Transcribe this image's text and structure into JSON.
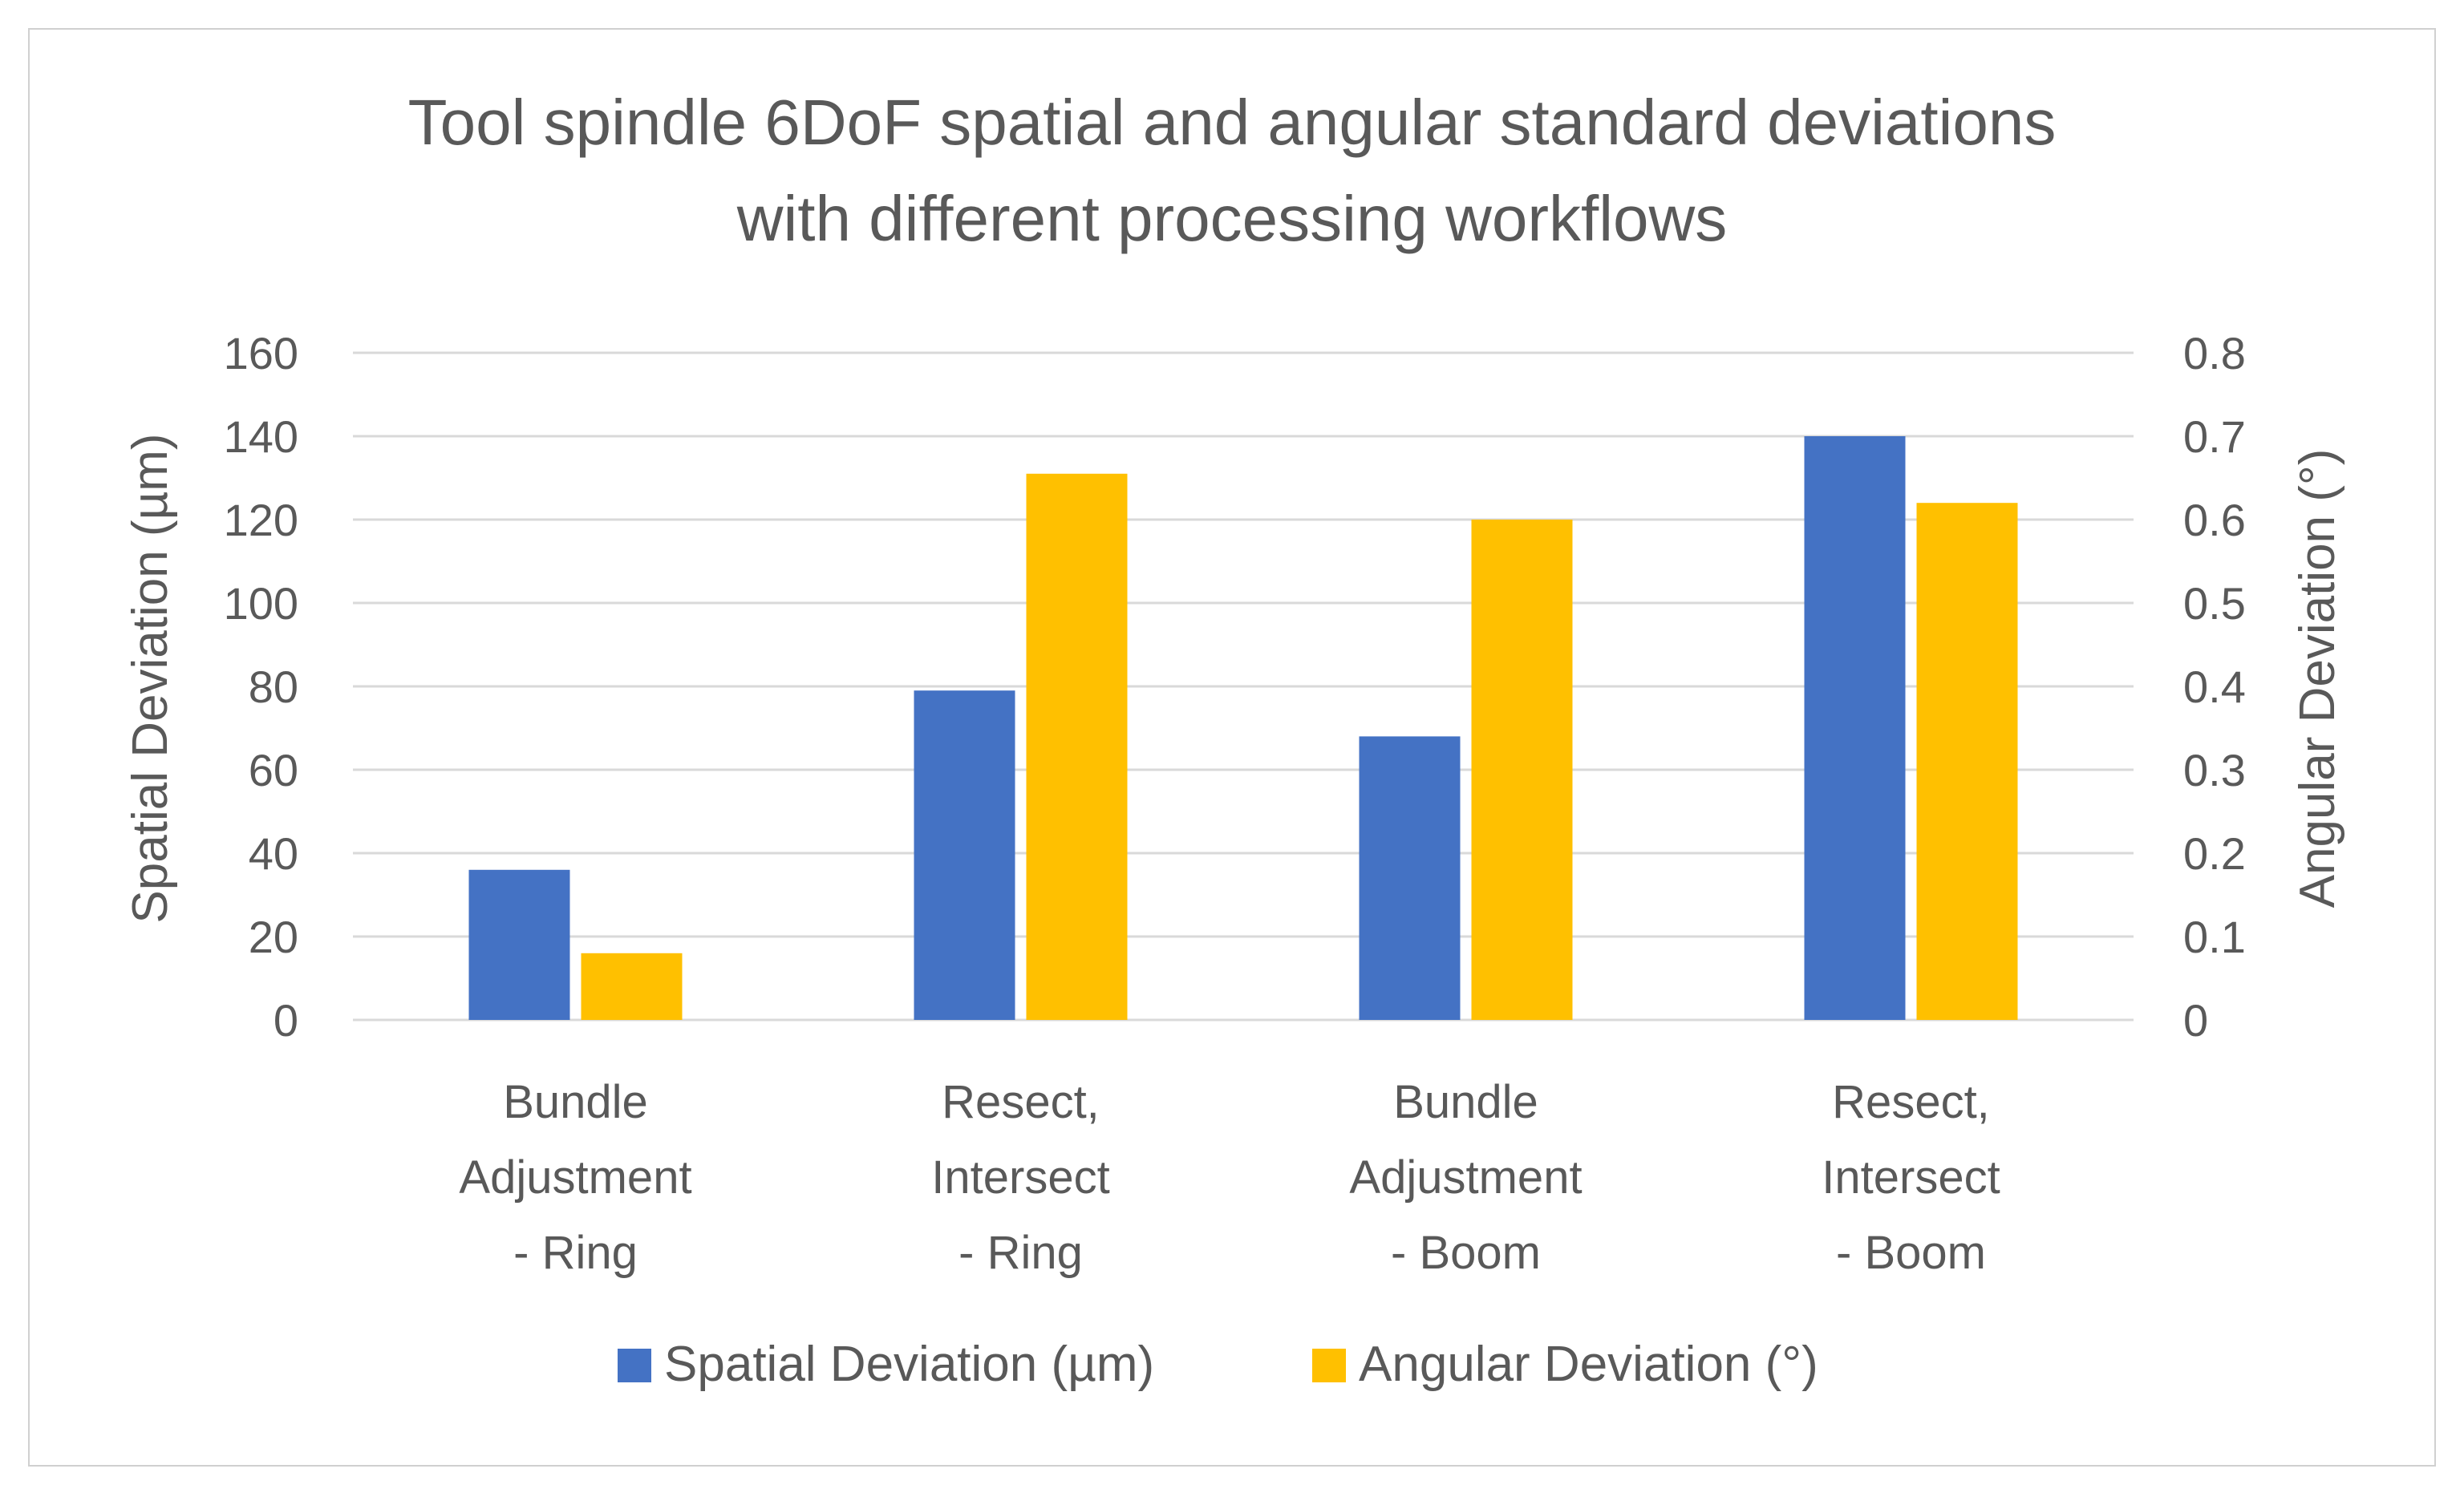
{
  "chart_data": {
    "type": "bar",
    "title": "Tool spindle 6DoF spatial and angular standard deviations with different processing workflows",
    "title_lines": [
      "Tool spindle 6DoF spatial and angular standard deviations",
      "with different processing workflows"
    ],
    "categories": [
      "Bundle Adjustment - Ring",
      "Resect, Intersect - Ring",
      "Bundle Adjustment - Boom",
      "Resect, Intersect - Boom"
    ],
    "category_lines": [
      [
        "Bundle",
        "Adjustment",
        "- Ring"
      ],
      [
        "Resect,",
        "Intersect",
        "- Ring"
      ],
      [
        "Bundle",
        "Adjustment",
        "- Boom"
      ],
      [
        "Resect,",
        "Intersect",
        "- Boom"
      ]
    ],
    "series": [
      {
        "name": "Spatial Deviation (µm)",
        "axis": "left",
        "color": "#4472C4",
        "values": [
          36,
          79,
          68,
          140
        ]
      },
      {
        "name": "Angular Deviation (°)",
        "axis": "right",
        "color": "#FFC000",
        "values": [
          0.08,
          0.655,
          0.6,
          0.62
        ]
      }
    ],
    "ylabel": "Spatial Deviation (µm)",
    "ylim": [
      0,
      160
    ],
    "yticks": [
      "0",
      "20",
      "40",
      "60",
      "80",
      "100",
      "120",
      "140",
      "160"
    ],
    "y2label": "Angular Deviation (°)",
    "y2lim": [
      0,
      0.8
    ],
    "y2ticks": [
      "0",
      "0.1",
      "0.2",
      "0.3",
      "0.4",
      "0.5",
      "0.6",
      "0.7",
      "0.8"
    ],
    "xlabel": "",
    "grid": true,
    "legend_position": "bottom"
  }
}
